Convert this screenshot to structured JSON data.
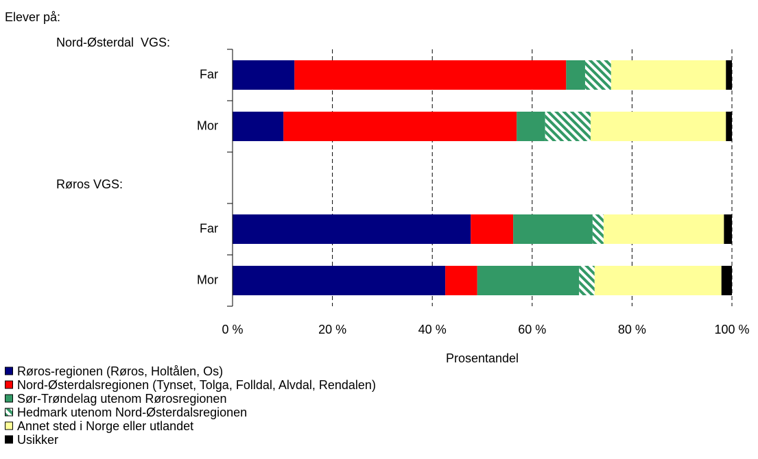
{
  "chart_data": {
    "type": "stacked-barh",
    "header": "Elever på:",
    "annotations": [
      "Nord-Østerdal  VGS:",
      "Røros VGS:"
    ],
    "categories": [
      "Far",
      "Mor",
      null,
      "Far",
      "Mor"
    ],
    "xlabel": "Prosentandel",
    "xlim": [
      0,
      100
    ],
    "xticks": [
      {
        "value": 0,
        "label": "0 %"
      },
      {
        "value": 20,
        "label": "20 %"
      },
      {
        "value": 40,
        "label": "40 %"
      },
      {
        "value": 60,
        "label": "60 %"
      },
      {
        "value": 80,
        "label": "80 %"
      },
      {
        "value": 100,
        "label": "100 %"
      }
    ],
    "grid": true,
    "series": [
      {
        "name": "Røros-regionen (Røros, Holtålen, Os)",
        "color": "#000080",
        "values": [
          12.4,
          10.2,
          null,
          47.7,
          42.6
        ]
      },
      {
        "name": "Nord-Østerdalsregionen (Tynset, Tolga, Folldal, Alvdal, Rendalen)",
        "color": "#ff0000",
        "values": [
          54.4,
          46.7,
          null,
          8.5,
          6.4
        ]
      },
      {
        "name": "Sør-Trøndelag utenom Rørosregionen",
        "color": "#339966",
        "values": [
          3.8,
          5.7,
          null,
          15.9,
          20.4
        ]
      },
      {
        "name": "Hedmark utenom Nord-Østerdalsregionen",
        "color": "#339966",
        "hatch": true,
        "values": [
          5.2,
          9.1,
          null,
          2.2,
          3.1
        ]
      },
      {
        "name": "Annet sted i Norge eller utlandet",
        "color": "#ffff99",
        "values": [
          23.0,
          27.1,
          null,
          24.1,
          25.4
        ]
      },
      {
        "name": "Usikker",
        "color": "#000000",
        "values": [
          1.2,
          1.2,
          null,
          1.6,
          2.1
        ]
      }
    ]
  }
}
